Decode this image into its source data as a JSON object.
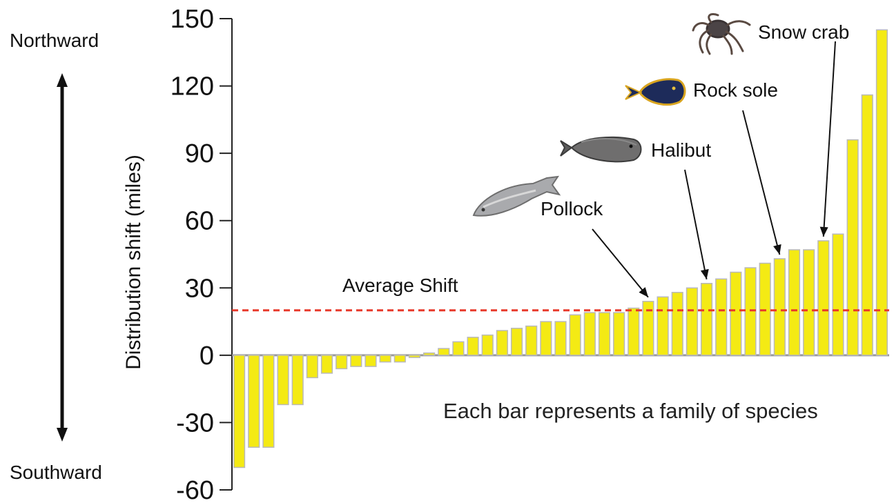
{
  "direction_labels": {
    "up": "Northward",
    "down": "Southward"
  },
  "annotations": {
    "average": "Average Shift",
    "note": "Each bar represents a family of species",
    "species": [
      {
        "label": "Pollock",
        "bar": 28,
        "icon": "pollock-icon"
      },
      {
        "label": "Halibut",
        "bar": 32,
        "icon": "halibut-icon"
      },
      {
        "label": "Rock sole",
        "bar": 37,
        "icon": "rock-sole-icon"
      },
      {
        "label": "Snow crab",
        "bar": 40,
        "icon": "snow-crab-icon"
      }
    ]
  },
  "colors": {
    "bar_fill": "#f4ea14",
    "bar_edge": "#b9b9b9",
    "average_line": "#e8392a",
    "axis": "#222222"
  },
  "chart_data": {
    "type": "bar",
    "ylabel": "Distribution shift (miles)",
    "ylim": [
      -60,
      150
    ],
    "yticks": [
      -60,
      -30,
      0,
      30,
      60,
      90,
      120,
      150
    ],
    "average_shift": 20,
    "values": [
      -50,
      -41,
      -41,
      -22,
      -22,
      -10,
      -8,
      -6,
      -5,
      -5,
      -3,
      -3,
      -1,
      1,
      3,
      6,
      8,
      9,
      11,
      12,
      13,
      15,
      15,
      18,
      19,
      19,
      19,
      21,
      24,
      26,
      28,
      30,
      32,
      34,
      37,
      39,
      41,
      43,
      47,
      47,
      51,
      54,
      96,
      116,
      145
    ]
  }
}
